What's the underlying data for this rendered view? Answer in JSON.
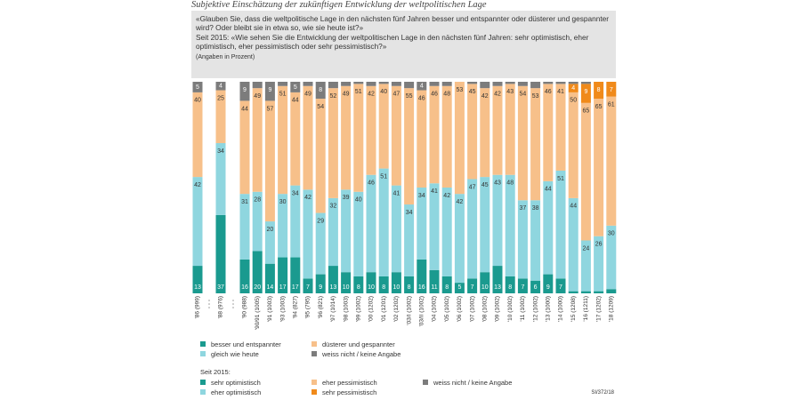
{
  "title": "Subjektive Einschätzung der zukünftigen Entwicklung der weltpolitischen Lage",
  "question_1": "«Glauben Sie, dass die weltpolitische Lage in den nächsten fünf Jahren besser und entspannter oder düsterer und gespannter wird? Oder bleibt sie in etwa so, wie sie heute ist?»",
  "question_2": "Seit 2015: «Wie sehen Sie die Entwicklung der weltpolitischen Lage in den nächsten fünf Jahren: sehr optimistisch, eher optimistisch, eher pessimistisch oder sehr pessimistisch?»",
  "note": "(Angaben in Prozent)",
  "legend_heading": "Seit 2015:",
  "source": "SI/372/18",
  "chart_data": {
    "type": "stacked_bar",
    "ylim": [
      0,
      100
    ],
    "categories": [
      "'86 (999)",
      "'88 (976)",
      "'90 (988)",
      "'90/91 (1005)",
      "'91 (1003)",
      "'93 (1003)",
      "'94 (827)",
      "'95 (795)",
      "'96 (821)",
      "'97 (1014)",
      "'98 (1003)",
      "'99 (1002)",
      "'00 (1202)",
      "'01 (1201)",
      "'02 (1202)",
      "'03/I (1002)",
      "'03/II (1002)",
      "'04 (1002)",
      "'05 (1002)",
      "'06 (1002)",
      "'07 (1002)",
      "'08 (1002)",
      "'09 (1002)",
      "'10 (1002)",
      "'11 (1002)",
      "'12 (1002)",
      "'13 (1000)",
      "'14 (1000)",
      "'15 (1208)",
      "'16 (1211)",
      "'17 (1202)",
      "'18 (1209)"
    ],
    "series": [
      {
        "name": "besser und entspannter",
        "color": "#1a9a8f",
        "values": [
          13,
          37,
          16,
          20,
          14,
          17,
          17,
          7,
          9,
          13,
          10,
          8,
          10,
          8,
          10,
          8,
          16,
          11,
          8,
          5,
          7,
          10,
          13,
          8,
          7,
          6,
          9,
          7,
          null,
          null,
          null,
          null
        ]
      },
      {
        "name": "gleich wie heute",
        "color": "#8fd6df",
        "values": [
          42,
          34,
          31,
          28,
          20,
          30,
          34,
          42,
          29,
          32,
          39,
          40,
          46,
          51,
          41,
          34,
          34,
          41,
          42,
          42,
          47,
          45,
          43,
          48,
          37,
          38,
          44,
          51,
          null,
          null,
          null,
          null
        ]
      },
      {
        "name": "düsterer und gespannter",
        "color": "#f7c08a",
        "values": [
          40,
          25,
          44,
          49,
          57,
          51,
          44,
          49,
          54,
          52,
          49,
          51,
          42,
          40,
          47,
          55,
          46,
          46,
          48,
          53,
          45,
          42,
          42,
          43,
          54,
          53,
          46,
          41,
          null,
          null,
          null,
          null
        ]
      },
      {
        "name": "weiss nicht / keine Angabe",
        "color": "#7c7c7c",
        "values": [
          5,
          4,
          9,
          3,
          9,
          2,
          5,
          2,
          8,
          3,
          2,
          1,
          2,
          1,
          2,
          3,
          4,
          2,
          2,
          0,
          1,
          3,
          2,
          1,
          2,
          3,
          1,
          1,
          null,
          null,
          null,
          null
        ]
      },
      {
        "name": "sehr optimistisch",
        "color": "#1a9a8f",
        "values": [
          null,
          null,
          null,
          null,
          null,
          null,
          null,
          null,
          null,
          null,
          null,
          null,
          null,
          null,
          null,
          null,
          null,
          null,
          null,
          null,
          null,
          null,
          null,
          null,
          null,
          null,
          null,
          null,
          1,
          1,
          1,
          2
        ]
      },
      {
        "name": "eher optimistisch",
        "color": "#8fd6df",
        "values": [
          null,
          null,
          null,
          null,
          null,
          null,
          null,
          null,
          null,
          null,
          null,
          null,
          null,
          null,
          null,
          null,
          null,
          null,
          null,
          null,
          null,
          null,
          null,
          null,
          null,
          null,
          null,
          null,
          44,
          24,
          26,
          30
        ]
      },
      {
        "name": "eher pessimistisch",
        "color": "#f7c08a",
        "values": [
          null,
          null,
          null,
          null,
          null,
          null,
          null,
          null,
          null,
          null,
          null,
          null,
          null,
          null,
          null,
          null,
          null,
          null,
          null,
          null,
          null,
          null,
          null,
          null,
          null,
          null,
          null,
          null,
          50,
          65,
          65,
          61
        ]
      },
      {
        "name": "sehr pessimistisch",
        "color": "#f08a1a",
        "values": [
          null,
          null,
          null,
          null,
          null,
          null,
          null,
          null,
          null,
          null,
          null,
          null,
          null,
          null,
          null,
          null,
          null,
          null,
          null,
          null,
          null,
          null,
          null,
          null,
          null,
          null,
          null,
          null,
          4,
          9,
          8,
          7
        ]
      },
      {
        "name": "weiss nicht / keine Angabe",
        "color": "#7c7c7c",
        "values": [
          null,
          null,
          null,
          null,
          null,
          null,
          null,
          null,
          null,
          null,
          null,
          null,
          null,
          null,
          null,
          null,
          null,
          null,
          null,
          null,
          null,
          null,
          null,
          null,
          null,
          null,
          null,
          null,
          1,
          1,
          0,
          0
        ]
      }
    ]
  }
}
